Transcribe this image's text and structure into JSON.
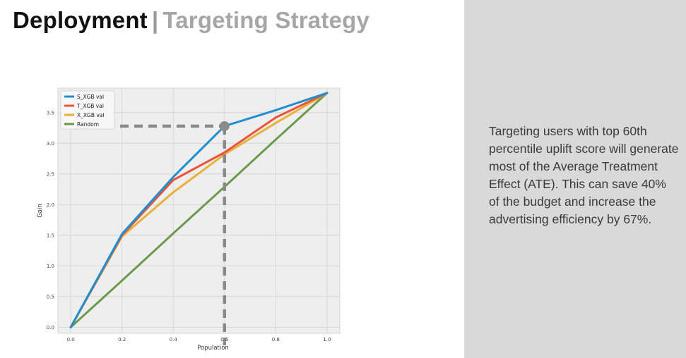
{
  "slide": {
    "title_main": "Deployment",
    "title_sep": "|",
    "title_sub": "Targeting Strategy",
    "description": "Targeting users with top 60th percentile uplift score will generate most of the Average Treatment Effect (ATE). This can save 40% of the budget and increase the advertising efficiency by 67%."
  },
  "colors": {
    "plot_bg": "#eeeeee",
    "grid": "#d2d2d2",
    "annotation": "#8a8a8a"
  },
  "chart_data": {
    "type": "line",
    "title": "",
    "xlabel": "Population",
    "ylabel": "Gain",
    "xlim": [
      -0.05,
      1.05
    ],
    "ylim": [
      -0.1,
      3.9
    ],
    "xticks": [
      0.0,
      0.2,
      0.4,
      0.6,
      0.8,
      1.0
    ],
    "yticks": [
      0.0,
      0.5,
      1.0,
      1.5,
      2.0,
      2.5,
      3.0,
      3.5
    ],
    "xtick_labels": [
      "0.0",
      "0.2",
      "0.4",
      "0.6",
      "0.8",
      "1.0"
    ],
    "ytick_labels": [
      "0.0",
      "0.5",
      "1.0",
      "1.5",
      "2.0",
      "2.5",
      "3.0",
      "3.5"
    ],
    "grid": true,
    "legend_position": "top-left",
    "x": [
      0.0,
      0.2,
      0.4,
      0.6,
      0.8,
      1.0
    ],
    "series": [
      {
        "name": "S_XGB val",
        "color": "#1f8fcf",
        "values": [
          0.0,
          1.52,
          2.45,
          3.28,
          3.54,
          3.82
        ]
      },
      {
        "name": "T_XGB val",
        "color": "#e8553a",
        "values": [
          0.0,
          1.5,
          2.4,
          2.85,
          3.42,
          3.82
        ]
      },
      {
        "name": "X_XGB val",
        "color": "#e7b13c",
        "values": [
          0.0,
          1.48,
          2.2,
          2.82,
          3.33,
          3.82
        ]
      },
      {
        "name": "Random",
        "color": "#6a9a4a",
        "values": [
          0.0,
          0.76,
          1.53,
          2.29,
          3.06,
          3.82
        ]
      }
    ],
    "annotation": {
      "x": 0.6,
      "y": 3.28,
      "style": "dashed-crosshair"
    }
  }
}
